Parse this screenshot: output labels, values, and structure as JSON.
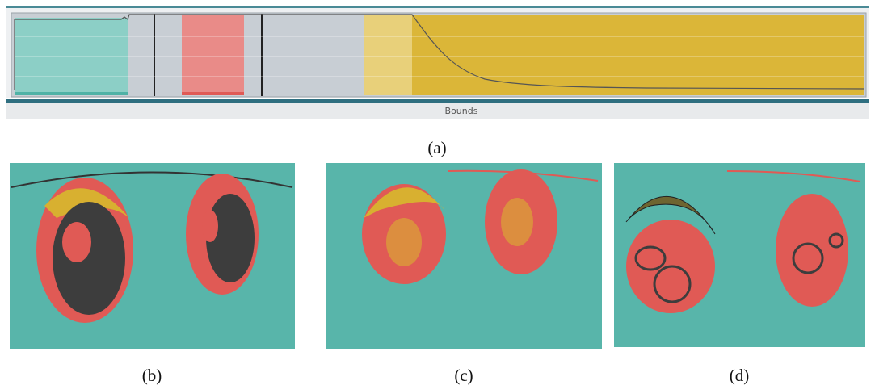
{
  "panel_a": {
    "bounds_label": "Bounds",
    "caption": "(a)"
  },
  "panels": [
    {
      "caption": "(b)"
    },
    {
      "caption": "(c)"
    },
    {
      "caption": "(d)"
    }
  ]
}
